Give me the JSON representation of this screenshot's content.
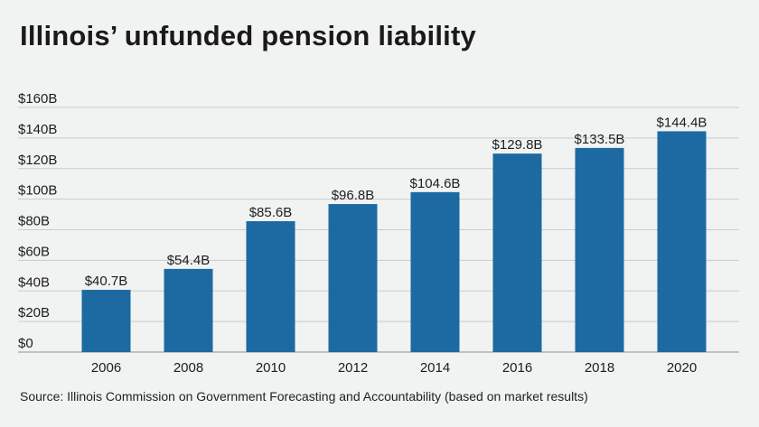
{
  "header": {
    "title": "Illinois’ unfunded pension liability"
  },
  "footer": {
    "source": "Source: Illinois Commission on Government Forecasting and Accountability (based on market results)"
  },
  "colors": {
    "bar": "#1c6aa1",
    "gridline": "#c9cbcd",
    "background": "#f1f2f2",
    "text": "#1d1d1d"
  },
  "chart_data": {
    "type": "bar",
    "title": "Illinois’ unfunded pension liability",
    "xlabel": "",
    "ylabel": "",
    "categories": [
      "2006",
      "2008",
      "2010",
      "2012",
      "2014",
      "2016",
      "2018",
      "2020"
    ],
    "values": [
      40.7,
      54.4,
      85.6,
      96.8,
      104.6,
      129.8,
      133.5,
      144.4
    ],
    "value_labels": [
      "$40.7B",
      "$54.4B",
      "$85.6B",
      "$96.8B",
      "$104.6B",
      "$129.8B",
      "$133.5B",
      "$144.4B"
    ],
    "ylim": [
      0,
      160
    ],
    "y_ticks": [
      0,
      20,
      40,
      60,
      80,
      100,
      120,
      140,
      160
    ],
    "y_tick_labels": [
      "$0",
      "$20B",
      "$40B",
      "$60B",
      "$80B",
      "$100B",
      "$120B",
      "$140B",
      "$160B"
    ],
    "grid": true,
    "legend": "none"
  }
}
